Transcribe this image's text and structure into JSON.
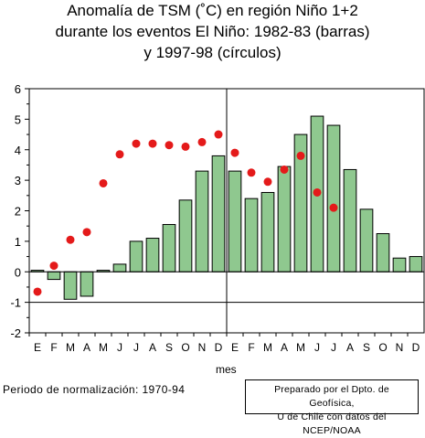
{
  "title_lines": [
    "Anomalía de TSM (˚C) en región Niño 1+2",
    "durante los eventos El Niño: 1982-83 (barras)",
    "y 1997-98 (círculos)"
  ],
  "footer": {
    "normalization": "Periodo de normalización: 1970-94",
    "credit_line1": "Preparado por el Dpto. de Geofísica,",
    "credit_line2": "U de Chile con datos del NCEP/NOAA"
  },
  "chart_data": {
    "type": "bar",
    "title": "Anomalía de TSM (˚C) en región Niño 1+2 durante los eventos El Niño: 1982-83 (barras) y 1997-98 (círculos)",
    "xlabel": "mes",
    "ylabel": "",
    "ylim": [
      -2,
      6
    ],
    "yticks": [
      -2,
      -1,
      0,
      1,
      2,
      3,
      4,
      5,
      6
    ],
    "grid": false,
    "categories": [
      "E",
      "F",
      "M",
      "A",
      "M",
      "J",
      "J",
      "A",
      "S",
      "O",
      "N",
      "D",
      "E",
      "F",
      "M",
      "A",
      "M",
      "J",
      "J",
      "A",
      "S",
      "O",
      "N",
      "D"
    ],
    "series": [
      {
        "name": "1982-83",
        "kind": "bar",
        "color": "#8fc88f",
        "values": [
          0.05,
          -0.25,
          -0.9,
          -0.8,
          0.05,
          0.25,
          1.0,
          1.1,
          1.55,
          2.35,
          3.3,
          3.8,
          3.3,
          2.4,
          2.6,
          3.45,
          4.5,
          5.1,
          4.8,
          3.35,
          2.05,
          1.25,
          0.45,
          0.5
        ]
      },
      {
        "name": "1997-98",
        "kind": "scatter",
        "color": "#e41a1a",
        "values": [
          -0.65,
          0.2,
          1.05,
          1.3,
          2.9,
          3.85,
          4.2,
          4.2,
          4.15,
          4.1,
          4.25,
          4.5,
          3.9,
          3.25,
          2.95,
          3.35,
          3.8,
          2.6,
          2.1,
          null,
          null,
          null,
          null,
          null
        ]
      }
    ]
  }
}
